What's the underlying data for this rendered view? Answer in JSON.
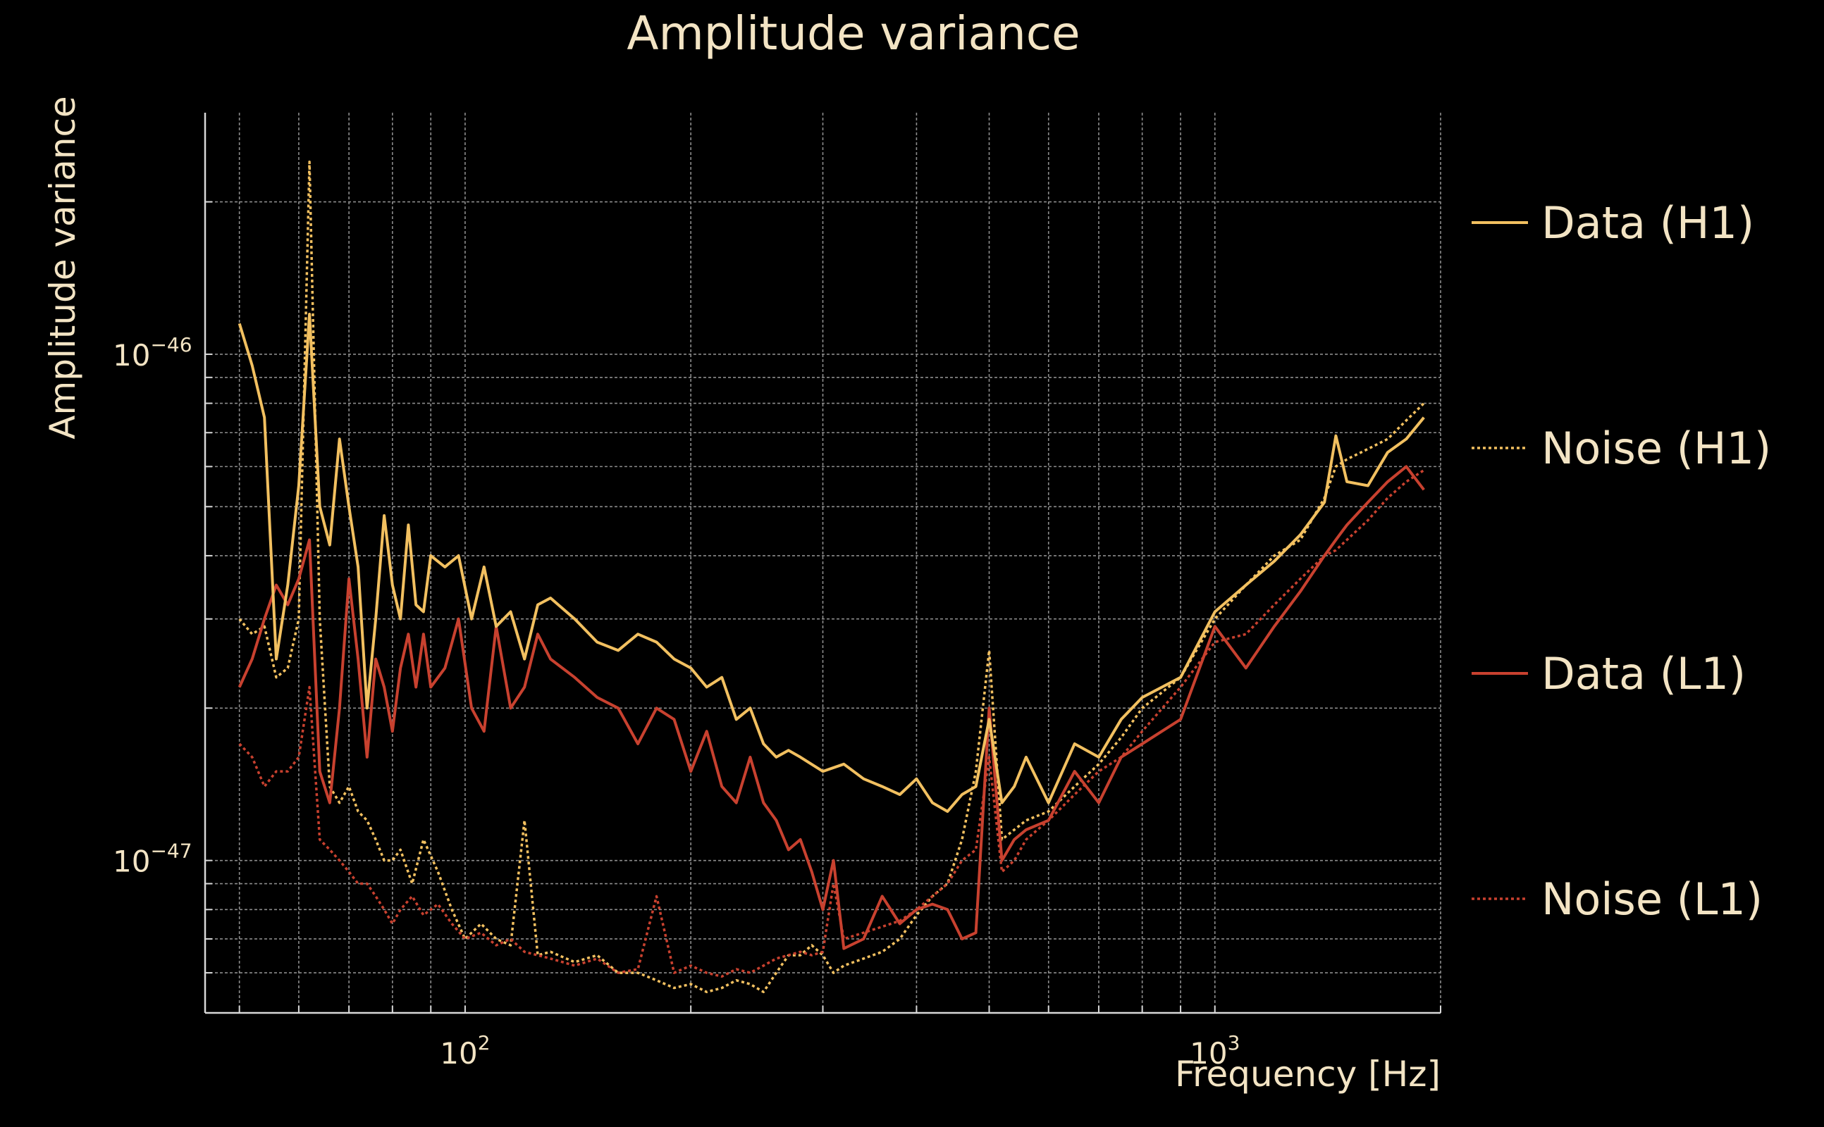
{
  "chart_data": {
    "type": "line",
    "title": "Amplitude variance",
    "xlabel": "Frequency [Hz]",
    "ylabel": "Amplitude variance",
    "xscale": "log",
    "yscale": "log",
    "xlim": [
      45,
      2000
    ],
    "ylim": [
      5e-48,
      3e-46
    ],
    "grid": true,
    "legend": "right",
    "x_ticks": [
      {
        "base": "10",
        "exp": "2",
        "value": 100
      },
      {
        "base": "10",
        "exp": "3",
        "value": 1000
      }
    ],
    "y_ticks": [
      {
        "base": "10",
        "exp": "−46",
        "value": 1e-46
      },
      {
        "base": "10",
        "exp": "−47",
        "value": 1e-47
      }
    ],
    "series": [
      {
        "name": "Data (H1)",
        "color": "#f2c060",
        "style": "solid",
        "x": [
          50,
          52,
          54,
          56,
          58,
          60,
          62,
          64,
          66,
          68,
          70,
          72,
          74,
          76,
          78,
          80,
          82,
          84,
          86,
          88,
          90,
          94,
          98,
          102,
          106,
          110,
          115,
          120,
          125,
          130,
          140,
          150,
          160,
          170,
          180,
          190,
          200,
          210,
          220,
          230,
          240,
          250,
          260,
          270,
          280,
          300,
          320,
          340,
          360,
          380,
          400,
          420,
          440,
          460,
          480,
          500,
          520,
          540,
          560,
          600,
          650,
          700,
          750,
          800,
          900,
          1000,
          1100,
          1200,
          1300,
          1400,
          1450,
          1500,
          1600,
          1700,
          1800,
          1900
        ],
        "y": [
          1.15e-46,
          9.5e-47,
          7.5e-47,
          2.5e-47,
          3.5e-47,
          5.5e-47,
          1.2e-46,
          5e-47,
          4.2e-47,
          6.8e-47,
          5e-47,
          3.8e-47,
          2e-47,
          3e-47,
          4.8e-47,
          3.5e-47,
          3e-47,
          4.6e-47,
          3.2e-47,
          3.1e-47,
          4e-47,
          3.8e-47,
          4e-47,
          3e-47,
          3.8e-47,
          2.9e-47,
          3.1e-47,
          2.5e-47,
          3.2e-47,
          3.3e-47,
          3e-47,
          2.7e-47,
          2.6e-47,
          2.8e-47,
          2.7e-47,
          2.5e-47,
          2.4e-47,
          2.2e-47,
          2.3e-47,
          1.9e-47,
          2e-47,
          1.7e-47,
          1.6e-47,
          1.65e-47,
          1.6e-47,
          1.5e-47,
          1.55e-47,
          1.45e-47,
          1.4e-47,
          1.35e-47,
          1.45e-47,
          1.3e-47,
          1.25e-47,
          1.35e-47,
          1.4e-47,
          1.9e-47,
          1.3e-47,
          1.4e-47,
          1.6e-47,
          1.3e-47,
          1.7e-47,
          1.6e-47,
          1.9e-47,
          2.1e-47,
          2.3e-47,
          3.1e-47,
          3.5e-47,
          3.9e-47,
          4.4e-47,
          5.1e-47,
          6.9e-47,
          5.6e-47,
          5.5e-47,
          6.4e-47,
          6.8e-47,
          7.5e-47
        ]
      },
      {
        "name": "Noise (H1)",
        "color": "#f2c060",
        "style": "dotted",
        "x": [
          50,
          52,
          54,
          56,
          58,
          60,
          62,
          64,
          66,
          68,
          70,
          72,
          74,
          76,
          78,
          80,
          82,
          85,
          88,
          92,
          96,
          100,
          105,
          110,
          115,
          120,
          125,
          130,
          140,
          150,
          160,
          170,
          180,
          190,
          200,
          210,
          220,
          230,
          240,
          250,
          260,
          270,
          280,
          290,
          300,
          310,
          320,
          340,
          360,
          380,
          400,
          420,
          440,
          460,
          480,
          500,
          520,
          540,
          560,
          600,
          650,
          700,
          750,
          800,
          900,
          1000,
          1100,
          1200,
          1300,
          1400,
          1450,
          1500,
          1600,
          1700,
          1800,
          1900
        ],
        "y": [
          3e-47,
          2.8e-47,
          2.9e-47,
          2.3e-47,
          2.4e-47,
          3e-47,
          2.4e-46,
          3e-47,
          1.4e-47,
          1.3e-47,
          1.4e-47,
          1.25e-47,
          1.2e-47,
          1.1e-47,
          1e-47,
          1e-47,
          1.05e-47,
          9e-48,
          1.1e-47,
          9.5e-48,
          8e-48,
          7e-48,
          7.5e-48,
          7e-48,
          6.8e-48,
          1.2e-47,
          6.5e-48,
          6.6e-48,
          6.3e-48,
          6.5e-48,
          6e-48,
          6e-48,
          5.8e-48,
          5.6e-48,
          5.7e-48,
          5.5e-48,
          5.6e-48,
          5.8e-48,
          5.7e-48,
          5.5e-48,
          6e-48,
          6.5e-48,
          6.5e-48,
          6.8e-48,
          6.5e-48,
          6e-48,
          6.2e-48,
          6.4e-48,
          6.6e-48,
          7e-48,
          7.8e-48,
          8.5e-48,
          9e-48,
          1.1e-47,
          1.5e-47,
          2.6e-47,
          1.1e-47,
          1.15e-47,
          1.2e-47,
          1.25e-47,
          1.4e-47,
          1.55e-47,
          1.75e-47,
          2e-47,
          2.3e-47,
          3e-47,
          3.5e-47,
          4e-47,
          4.3e-47,
          5.2e-47,
          6e-47,
          6.2e-47,
          6.5e-47,
          6.8e-47,
          7.4e-47,
          8e-47
        ]
      },
      {
        "name": "Data (L1)",
        "color": "#c8412f",
        "style": "solid",
        "x": [
          50,
          52,
          54,
          56,
          58,
          60,
          62,
          64,
          66,
          68,
          70,
          72,
          74,
          76,
          78,
          80,
          82,
          84,
          86,
          88,
          90,
          94,
          98,
          102,
          106,
          110,
          115,
          120,
          125,
          130,
          140,
          150,
          160,
          170,
          180,
          190,
          200,
          210,
          220,
          230,
          240,
          250,
          260,
          270,
          280,
          290,
          300,
          310,
          320,
          340,
          360,
          380,
          400,
          420,
          440,
          460,
          480,
          500,
          520,
          540,
          560,
          600,
          650,
          700,
          750,
          800,
          900,
          1000,
          1100,
          1200,
          1300,
          1400,
          1450,
          1500,
          1600,
          1700,
          1800,
          1900
        ],
        "y": [
          2.2e-47,
          2.5e-47,
          3e-47,
          3.5e-47,
          3.2e-47,
          3.6e-47,
          4.3e-47,
          1.5e-47,
          1.3e-47,
          2e-47,
          3.6e-47,
          2.5e-47,
          1.6e-47,
          2.5e-47,
          2.2e-47,
          1.8e-47,
          2.4e-47,
          2.8e-47,
          2.2e-47,
          2.8e-47,
          2.2e-47,
          2.4e-47,
          3e-47,
          2e-47,
          1.8e-47,
          2.9e-47,
          2e-47,
          2.2e-47,
          2.8e-47,
          2.5e-47,
          2.3e-47,
          2.1e-47,
          2e-47,
          1.7e-47,
          2e-47,
          1.9e-47,
          1.5e-47,
          1.8e-47,
          1.4e-47,
          1.3e-47,
          1.6e-47,
          1.3e-47,
          1.2e-47,
          1.05e-47,
          1.1e-47,
          9.5e-48,
          8e-48,
          1e-47,
          6.7e-48,
          7e-48,
          8.5e-48,
          7.5e-48,
          8e-48,
          8.2e-48,
          8e-48,
          7e-48,
          7.2e-48,
          2e-47,
          1e-47,
          1.1e-47,
          1.15e-47,
          1.2e-47,
          1.5e-47,
          1.3e-47,
          1.6e-47,
          1.7e-47,
          1.9e-47,
          2.9e-47,
          2.4e-47,
          2.9e-47,
          3.4e-47,
          4e-47,
          4.3e-47,
          4.6e-47,
          5.1e-47,
          5.6e-47,
          6e-47,
          5.4e-47
        ]
      },
      {
        "name": "Noise (L1)",
        "color": "#c8412f",
        "style": "dotted",
        "x": [
          50,
          52,
          54,
          56,
          58,
          60,
          62,
          64,
          66,
          68,
          70,
          72,
          74,
          76,
          78,
          80,
          82,
          85,
          88,
          92,
          96,
          100,
          105,
          110,
          115,
          120,
          125,
          130,
          140,
          150,
          160,
          170,
          180,
          190,
          200,
          210,
          220,
          230,
          240,
          250,
          260,
          270,
          280,
          290,
          300,
          310,
          320,
          340,
          360,
          380,
          400,
          420,
          440,
          460,
          480,
          500,
          520,
          540,
          560,
          600,
          650,
          700,
          750,
          800,
          900,
          1000,
          1100,
          1200,
          1300,
          1400,
          1450,
          1500,
          1600,
          1700,
          1800,
          1900
        ],
        "y": [
          1.7e-47,
          1.6e-47,
          1.4e-47,
          1.5e-47,
          1.5e-47,
          1.6e-47,
          2.2e-47,
          1.1e-47,
          1.05e-47,
          1e-47,
          9.5e-48,
          9e-48,
          9e-48,
          8.5e-48,
          8e-48,
          7.5e-48,
          8e-48,
          8.5e-48,
          7.8e-48,
          8.2e-48,
          7.5e-48,
          7e-48,
          7.2e-48,
          6.8e-48,
          7e-48,
          6.6e-48,
          6.5e-48,
          6.4e-48,
          6.2e-48,
          6.4e-48,
          6e-48,
          6.1e-48,
          8.5e-48,
          6e-48,
          6.2e-48,
          6e-48,
          5.9e-48,
          6.1e-48,
          6e-48,
          6.2e-48,
          6.4e-48,
          6.5e-48,
          6.6e-48,
          6.5e-48,
          6.6e-48,
          9e-48,
          7e-48,
          7.2e-48,
          7.4e-48,
          7.6e-48,
          8e-48,
          8.5e-48,
          9e-48,
          1e-47,
          1.05e-47,
          1.6e-47,
          9.5e-48,
          1e-47,
          1.1e-47,
          1.2e-47,
          1.35e-47,
          1.5e-47,
          1.6e-47,
          1.8e-47,
          2.2e-47,
          2.7e-47,
          2.8e-47,
          3.2e-47,
          3.6e-47,
          4e-47,
          4.1e-47,
          4.3e-47,
          4.7e-47,
          5.2e-47,
          5.6e-47,
          5.9e-47
        ]
      }
    ]
  }
}
